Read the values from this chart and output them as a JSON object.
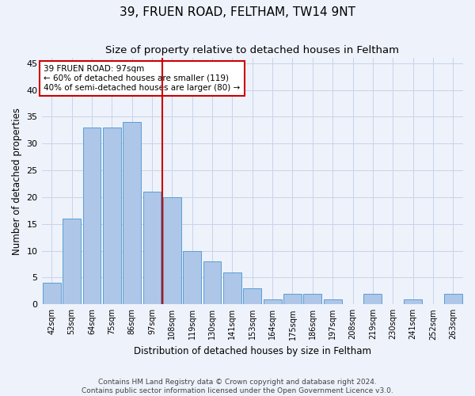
{
  "title": "39, FRUEN ROAD, FELTHAM, TW14 9NT",
  "subtitle": "Size of property relative to detached houses in Feltham",
  "xlabel": "Distribution of detached houses by size in Feltham",
  "ylabel": "Number of detached properties",
  "categories": [
    "42sqm",
    "53sqm",
    "64sqm",
    "75sqm",
    "86sqm",
    "97sqm",
    "108sqm",
    "119sqm",
    "130sqm",
    "141sqm",
    "153sqm",
    "164sqm",
    "175sqm",
    "186sqm",
    "197sqm",
    "208sqm",
    "219sqm",
    "230sqm",
    "241sqm",
    "252sqm",
    "263sqm"
  ],
  "values": [
    4,
    16,
    33,
    33,
    34,
    21,
    20,
    10,
    8,
    6,
    3,
    1,
    2,
    2,
    1,
    0,
    2,
    0,
    1,
    0,
    2
  ],
  "bar_color": "#aec6e8",
  "bar_edge_color": "#5a9fd4",
  "vline_color": "#cc0000",
  "vline_x": 5.5,
  "annotation_line1": "39 FRUEN ROAD: 97sqm",
  "annotation_line2": "← 60% of detached houses are smaller (119)",
  "annotation_line3": "40% of semi-detached houses are larger (80) →",
  "annotation_box_color": "#ffffff",
  "annotation_box_edge_color": "#cc0000",
  "ylim": [
    0,
    46
  ],
  "yticks": [
    0,
    5,
    10,
    15,
    20,
    25,
    30,
    35,
    40,
    45
  ],
  "footnote1": "Contains HM Land Registry data © Crown copyright and database right 2024.",
  "footnote2": "Contains public sector information licensed under the Open Government Licence v3.0.",
  "background_color": "#eef2fb",
  "grid_color": "#c8d4e8",
  "title_fontsize": 11,
  "subtitle_fontsize": 9.5,
  "tick_fontsize": 7,
  "label_fontsize": 8.5,
  "annotation_fontsize": 7.5,
  "footnote_fontsize": 6.5
}
